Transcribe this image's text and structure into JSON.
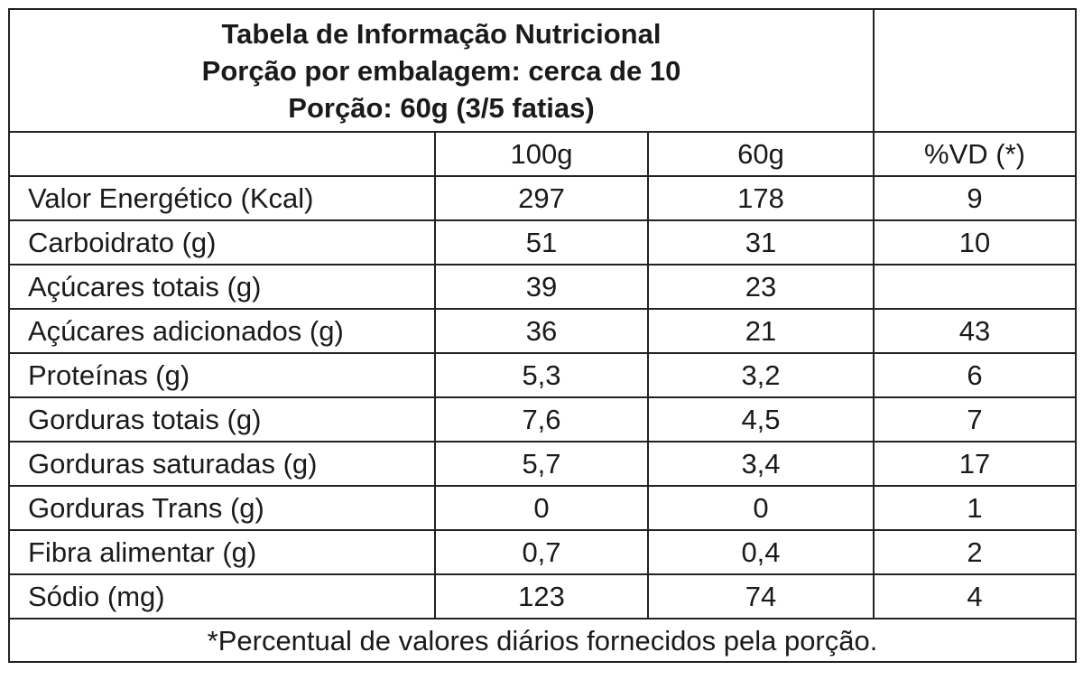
{
  "title": {
    "line1": "Tabela de Informação Nutricional",
    "line2": "Porção por embalagem: cerca de 10",
    "line3": "Porção: 60g (3/5 fatias)"
  },
  "columns": {
    "blank": "",
    "col_100g": "100g",
    "col_60g": "60g",
    "col_vd": "%VD (*)"
  },
  "rows": [
    {
      "nutrient": "Valor Energético (Kcal)",
      "per_100g": "297",
      "per_60g": "178",
      "vd": "9"
    },
    {
      "nutrient": "Carboidrato (g)",
      "per_100g": "51",
      "per_60g": "31",
      "vd": "10"
    },
    {
      "nutrient": "Açúcares totais (g)",
      "per_100g": "39",
      "per_60g": "23",
      "vd": ""
    },
    {
      "nutrient": "Açúcares adicionados (g)",
      "per_100g": "36",
      "per_60g": "21",
      "vd": "43"
    },
    {
      "nutrient": "Proteínas (g)",
      "per_100g": "5,3",
      "per_60g": "3,2",
      "vd": "6"
    },
    {
      "nutrient": "Gorduras totais (g)",
      "per_100g": "7,6",
      "per_60g": "4,5",
      "vd": "7"
    },
    {
      "nutrient": "Gorduras saturadas (g)",
      "per_100g": "5,7",
      "per_60g": "3,4",
      "vd": "17"
    },
    {
      "nutrient": "Gorduras Trans (g)",
      "per_100g": "0",
      "per_60g": "0",
      "vd": "1"
    },
    {
      "nutrient": "Fibra alimentar (g)",
      "per_100g": "0,7",
      "per_60g": "0,4",
      "vd": "2"
    },
    {
      "nutrient": "Sódio (mg)",
      "per_100g": "123",
      "per_60g": "74",
      "vd": "4"
    }
  ],
  "footer": "*Percentual de valores diários fornecidos pela porção."
}
